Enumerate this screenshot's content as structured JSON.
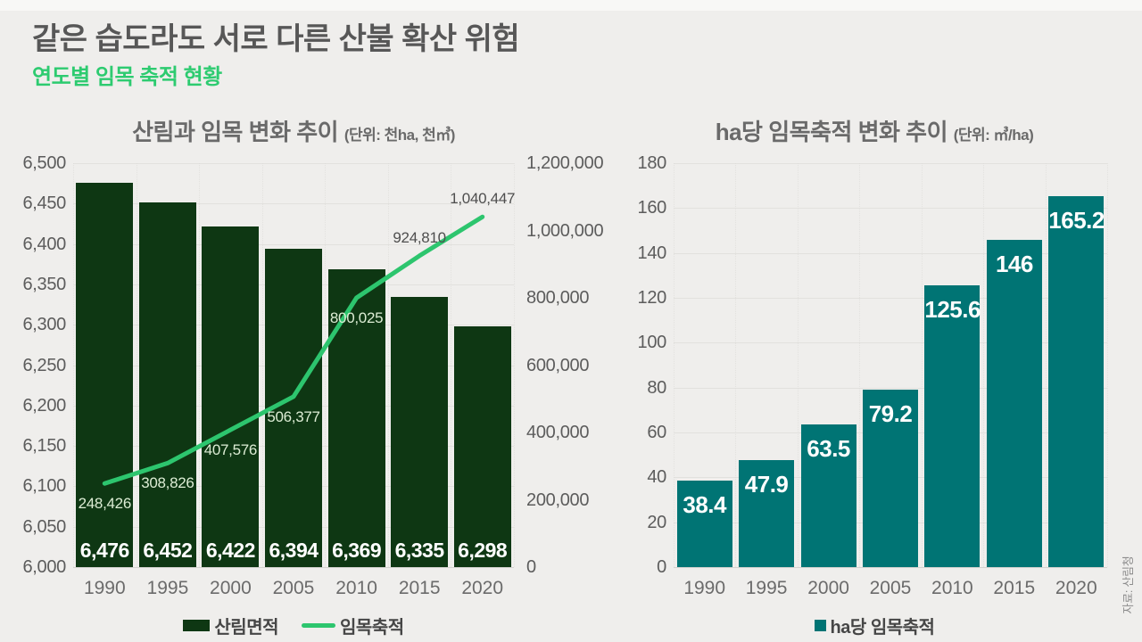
{
  "header": {
    "title": "같은 습도라도 서로 다른 산불 확산 위험",
    "subtitle": "연도별 임목 축적 현황"
  },
  "source": "자료: 산림청",
  "colors": {
    "background": "#efeeec",
    "top_strip": "#f8f8f6",
    "title": "#575757",
    "subtitle_green": "#2dcb70",
    "forest_bar": "#0e3713",
    "stock_line": "#2dc56e",
    "teal_bar": "#007474",
    "bar_value_label": "#ffffff",
    "point_label_light": "#dcecd4",
    "point_label_dark": "#4e4e4e",
    "gridline": "#e2e1de",
    "baseline": "#d3d2cf",
    "legend_text": "#464646",
    "source_text": "#8c8c8c"
  },
  "chart_data": [
    {
      "type": "bar+line",
      "title": "산림과 임목 변화 추이",
      "unit_note": "(단위: 천ha, 천㎥)",
      "categories": [
        "1990",
        "1995",
        "2000",
        "2005",
        "2010",
        "2015",
        "2020"
      ],
      "series": [
        {
          "name": "산림면적",
          "type": "bar",
          "axis": "left",
          "color": "#0e3713",
          "values": [
            6476,
            6452,
            6422,
            6394,
            6369,
            6335,
            6298
          ],
          "labels": [
            "6,476",
            "6,452",
            "6,422",
            "6,394",
            "6,369",
            "6,335",
            "6,298"
          ]
        },
        {
          "name": "임목축적",
          "type": "line",
          "axis": "right",
          "color": "#2dc56e",
          "values": [
            248426,
            308826,
            407576,
            506377,
            800025,
            924810,
            1040447
          ],
          "labels": [
            "248,426",
            "308,826",
            "407,576",
            "506,377",
            "800,025",
            "924,810",
            "1,040,447"
          ],
          "label_side": [
            "below",
            "below",
            "below",
            "below",
            "below",
            "above",
            "above"
          ],
          "label_variant": [
            "light",
            "light",
            "light",
            "light",
            "light",
            "dark",
            "dark"
          ]
        }
      ],
      "left_axis": {
        "min": 6000,
        "max": 6500,
        "step": 50,
        "ticks": [
          "6,500",
          "6,450",
          "6,400",
          "6,350",
          "6,300",
          "6,250",
          "6,200",
          "6,150",
          "6,100",
          "6,050",
          "6,000"
        ]
      },
      "right_axis": {
        "min": 0,
        "max": 1200000,
        "step": 200000,
        "ticks": [
          "1,200,000",
          "1,000,000",
          "800,000",
          "600,000",
          "400,000",
          "200,000",
          "0"
        ]
      },
      "grid": true,
      "legend_position": "bottom",
      "legend": [
        {
          "label": "산림면적",
          "swatch": "rect",
          "color": "#0e3713"
        },
        {
          "label": "임목축적",
          "swatch": "line",
          "color": "#2dc56e"
        }
      ]
    },
    {
      "type": "bar",
      "title": "ha당 임목축적 변화 추이",
      "unit_note": "(단위: ㎥/ha)",
      "categories": [
        "1990",
        "1995",
        "2000",
        "2005",
        "2010",
        "2015",
        "2020"
      ],
      "series": [
        {
          "name": "ha당 임목축적",
          "type": "bar",
          "color": "#007474",
          "values": [
            38.4,
            47.9,
            63.5,
            79.2,
            125.6,
            146,
            165.2
          ],
          "labels": [
            "38.4",
            "47.9",
            "63.5",
            "79.2",
            "125.6",
            "146",
            "165.2"
          ]
        }
      ],
      "y_axis": {
        "min": 0,
        "max": 180,
        "step": 20,
        "ticks": [
          "180",
          "160",
          "140",
          "120",
          "100",
          "80",
          "60",
          "40",
          "20",
          "0"
        ]
      },
      "grid": true,
      "legend_position": "bottom",
      "legend": [
        {
          "label": "ha당 임목축적",
          "swatch": "square",
          "color": "#007474"
        }
      ]
    }
  ]
}
